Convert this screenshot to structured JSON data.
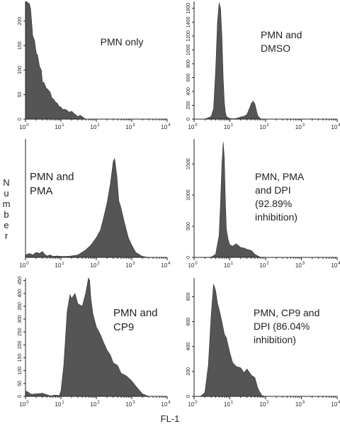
{
  "figure": {
    "xlabel": "FL-1",
    "ylabel": "Number",
    "x_tick_base": "10",
    "x_tick_exponents": [
      "0",
      "1",
      "2",
      "3",
      "4"
    ],
    "fill_color": "#555555"
  },
  "chart_data": [
    {
      "type": "area",
      "label_lines": [
        "PMN only"
      ],
      "xscale": "log",
      "xlim": [
        1,
        10000
      ],
      "ylim": [
        0,
        240
      ],
      "y_ticks": [
        0,
        50,
        100,
        150,
        200
      ],
      "x": [
        1,
        1.05,
        1.3,
        1.4,
        1.6,
        1.8,
        2,
        2.2,
        2.5,
        2.8,
        3,
        3.3,
        3.8,
        4.3,
        5,
        5.5,
        6.3,
        7,
        8,
        9,
        10,
        11,
        13,
        15,
        17,
        20,
        23,
        27,
        30,
        35,
        40,
        45,
        50
      ],
      "y": [
        232,
        240,
        235,
        224,
        170,
        160,
        135,
        130,
        107,
        100,
        75,
        75,
        64,
        60,
        55,
        44,
        40,
        35,
        32,
        25,
        25,
        20,
        20,
        18,
        14,
        16,
        12,
        8,
        5,
        8,
        5,
        2,
        0
      ]
    },
    {
      "type": "area",
      "label_lines": [
        "PMN and",
        "DMSO"
      ],
      "xscale": "log",
      "xlim": [
        1,
        10000
      ],
      "ylim": [
        0,
        1700
      ],
      "y_ticks": [
        0,
        200,
        400,
        600,
        800,
        1000,
        1200,
        1400,
        1600
      ],
      "x": [
        1,
        2,
        3,
        3.5,
        4,
        4.5,
        5,
        5.5,
        6,
        6.5,
        7,
        7.5,
        8,
        9,
        10,
        12,
        15,
        20,
        25,
        30,
        35,
        40,
        45,
        50,
        55,
        60,
        70,
        80,
        100
      ],
      "y": [
        0,
        0,
        40,
        150,
        700,
        1400,
        1680,
        1600,
        1200,
        600,
        250,
        100,
        40,
        20,
        10,
        5,
        10,
        30,
        40,
        70,
        150,
        230,
        260,
        220,
        130,
        50,
        10,
        0,
        0
      ]
    },
    {
      "type": "area",
      "label_lines": [
        "PMN and",
        "PMA"
      ],
      "xscale": "log",
      "xlim": [
        1,
        10000
      ],
      "ylim": [
        0,
        240
      ],
      "y_ticks": [],
      "x": [
        1,
        1.3,
        1.6,
        2,
        2.5,
        3,
        3.5,
        4,
        5,
        6,
        8,
        10,
        15,
        20,
        30,
        50,
        70,
        100,
        130,
        160,
        200,
        250,
        300,
        330,
        380,
        430,
        500,
        600,
        800,
        1000,
        1300,
        2000,
        3000
      ],
      "y": [
        5,
        8,
        5,
        10,
        8,
        12,
        6,
        3,
        5,
        2,
        3,
        2,
        2,
        3,
        5,
        15,
        25,
        40,
        55,
        80,
        110,
        150,
        195,
        200,
        165,
        115,
        100,
        75,
        40,
        25,
        10,
        2,
        0
      ]
    },
    {
      "type": "area",
      "label_lines": [
        "PMN, PMA",
        "and DPI",
        "(92.89%",
        "inhibition)"
      ],
      "xscale": "log",
      "xlim": [
        1,
        10000
      ],
      "ylim": [
        0,
        1900
      ],
      "y_ticks": [
        0,
        500,
        1000,
        1500
      ],
      "x": [
        1,
        2,
        3,
        4,
        5,
        5.5,
        6,
        6.5,
        7,
        7.5,
        8,
        9,
        10,
        12,
        15,
        20,
        25,
        30,
        40,
        50,
        70,
        100
      ],
      "y": [
        0,
        0,
        5,
        50,
        350,
        900,
        1500,
        1850,
        1600,
        900,
        450,
        280,
        200,
        180,
        220,
        160,
        150,
        130,
        110,
        50,
        5,
        0
      ]
    },
    {
      "type": "area",
      "label_lines": [
        "PMN and",
        "CP9"
      ],
      "xscale": "log",
      "xlim": [
        1,
        10000
      ],
      "ylim": [
        0,
        460
      ],
      "y_ticks": [
        0,
        50,
        100,
        150,
        200,
        250,
        300,
        350,
        400,
        450
      ],
      "x": [
        1,
        1.5,
        2,
        3,
        5,
        7,
        9,
        10,
        12,
        15,
        18,
        20,
        25,
        30,
        40,
        50,
        60,
        65,
        70,
        80,
        100,
        130,
        160,
        200,
        250,
        300,
        400,
        500,
        700,
        1000,
        1300,
        2000,
        3000
      ],
      "y": [
        22,
        8,
        10,
        12,
        2,
        5,
        3,
        20,
        120,
        330,
        395,
        380,
        400,
        360,
        350,
        400,
        460,
        450,
        380,
        320,
        270,
        240,
        210,
        180,
        160,
        130,
        120,
        90,
        80,
        60,
        40,
        10,
        0
      ]
    },
    {
      "type": "area",
      "label_lines": [
        "PMN, CP9 and",
        "DPI (86.04%",
        "inhibition)"
      ],
      "xscale": "log",
      "xlim": [
        1,
        10000
      ],
      "ylim": [
        0,
        950
      ],
      "y_ticks": [
        0,
        200,
        400,
        600,
        800
      ],
      "x": [
        1,
        1.5,
        2,
        2.5,
        3,
        3.5,
        4,
        4.5,
        5,
        6,
        7,
        8,
        10,
        12,
        15,
        20,
        25,
        30,
        40,
        50,
        60,
        70,
        80,
        100
      ],
      "y": [
        0,
        0,
        30,
        250,
        650,
        900,
        850,
        750,
        700,
        600,
        500,
        470,
        350,
        270,
        240,
        230,
        190,
        220,
        170,
        150,
        70,
        30,
        5,
        0
      ]
    }
  ]
}
